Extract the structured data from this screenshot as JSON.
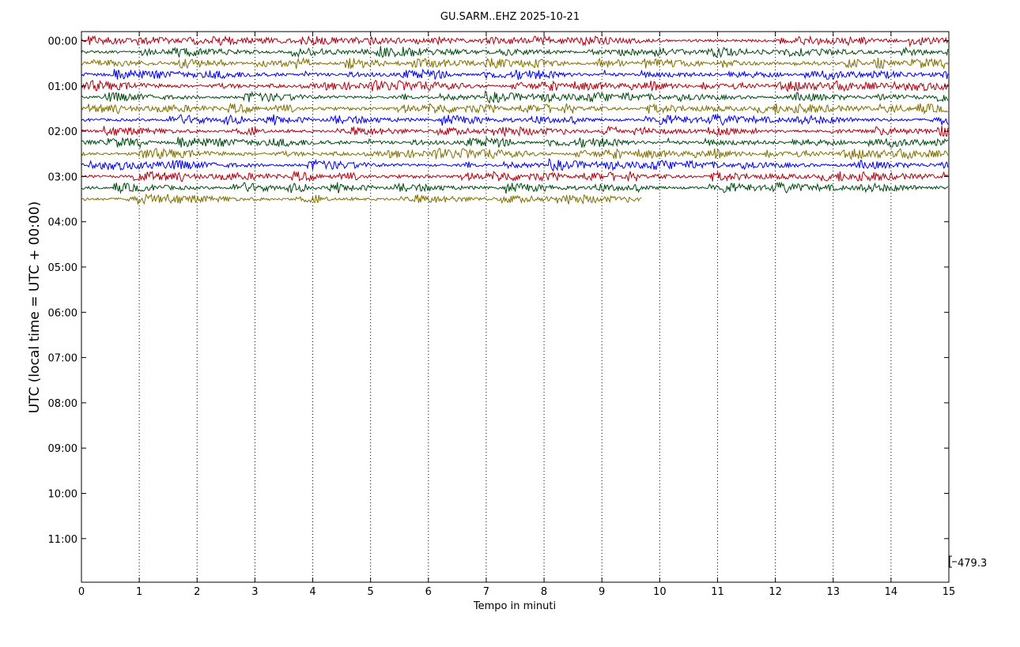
{
  "chart_data": {
    "type": "line",
    "subtype": "helicorder",
    "title": "GU.SARM..EHZ 2025-10-21",
    "xlabel": "Tempo in minuti",
    "ylabel": "UTC (local time = UTC + 00:00)",
    "xlim": [
      0,
      15
    ],
    "x_ticks": [
      "0",
      "1",
      "2",
      "3",
      "4",
      "5",
      "6",
      "7",
      "8",
      "9",
      "10",
      "11",
      "12",
      "13",
      "14",
      "15"
    ],
    "y_ticks": [
      "00:00",
      "01:00",
      "02:00",
      "03:00",
      "04:00",
      "05:00",
      "06:00",
      "07:00",
      "08:00",
      "09:00",
      "10:00",
      "11:00"
    ],
    "hours_displayed": 12,
    "minutes_per_line": 15,
    "grid": "vertical dotted at each minute",
    "scale_value": "479.3",
    "trace_colors": [
      "#b00010",
      "#004a10",
      "#807000",
      "#0000ee"
    ],
    "traces": [
      {
        "start": "00:00",
        "end_minute": 15,
        "color": "#b00010"
      },
      {
        "start": "00:15",
        "end_minute": 15,
        "color": "#004a10"
      },
      {
        "start": "00:30",
        "end_minute": 15,
        "color": "#807000"
      },
      {
        "start": "00:45",
        "end_minute": 15,
        "color": "#0000ee"
      },
      {
        "start": "01:00",
        "end_minute": 15,
        "color": "#b00010"
      },
      {
        "start": "01:15",
        "end_minute": 15,
        "color": "#004a10"
      },
      {
        "start": "01:30",
        "end_minute": 15,
        "color": "#807000"
      },
      {
        "start": "01:45",
        "end_minute": 15,
        "color": "#0000ee"
      },
      {
        "start": "02:00",
        "end_minute": 15,
        "color": "#b00010"
      },
      {
        "start": "02:15",
        "end_minute": 15,
        "color": "#004a10"
      },
      {
        "start": "02:30",
        "end_minute": 15,
        "color": "#807000"
      },
      {
        "start": "02:45",
        "end_minute": 15,
        "color": "#0000ee"
      },
      {
        "start": "03:00",
        "end_minute": 15,
        "color": "#b00010"
      },
      {
        "start": "03:15",
        "end_minute": 15,
        "color": "#004a10"
      },
      {
        "start": "03:30",
        "end_minute": 9.7,
        "color": "#807000"
      }
    ]
  }
}
